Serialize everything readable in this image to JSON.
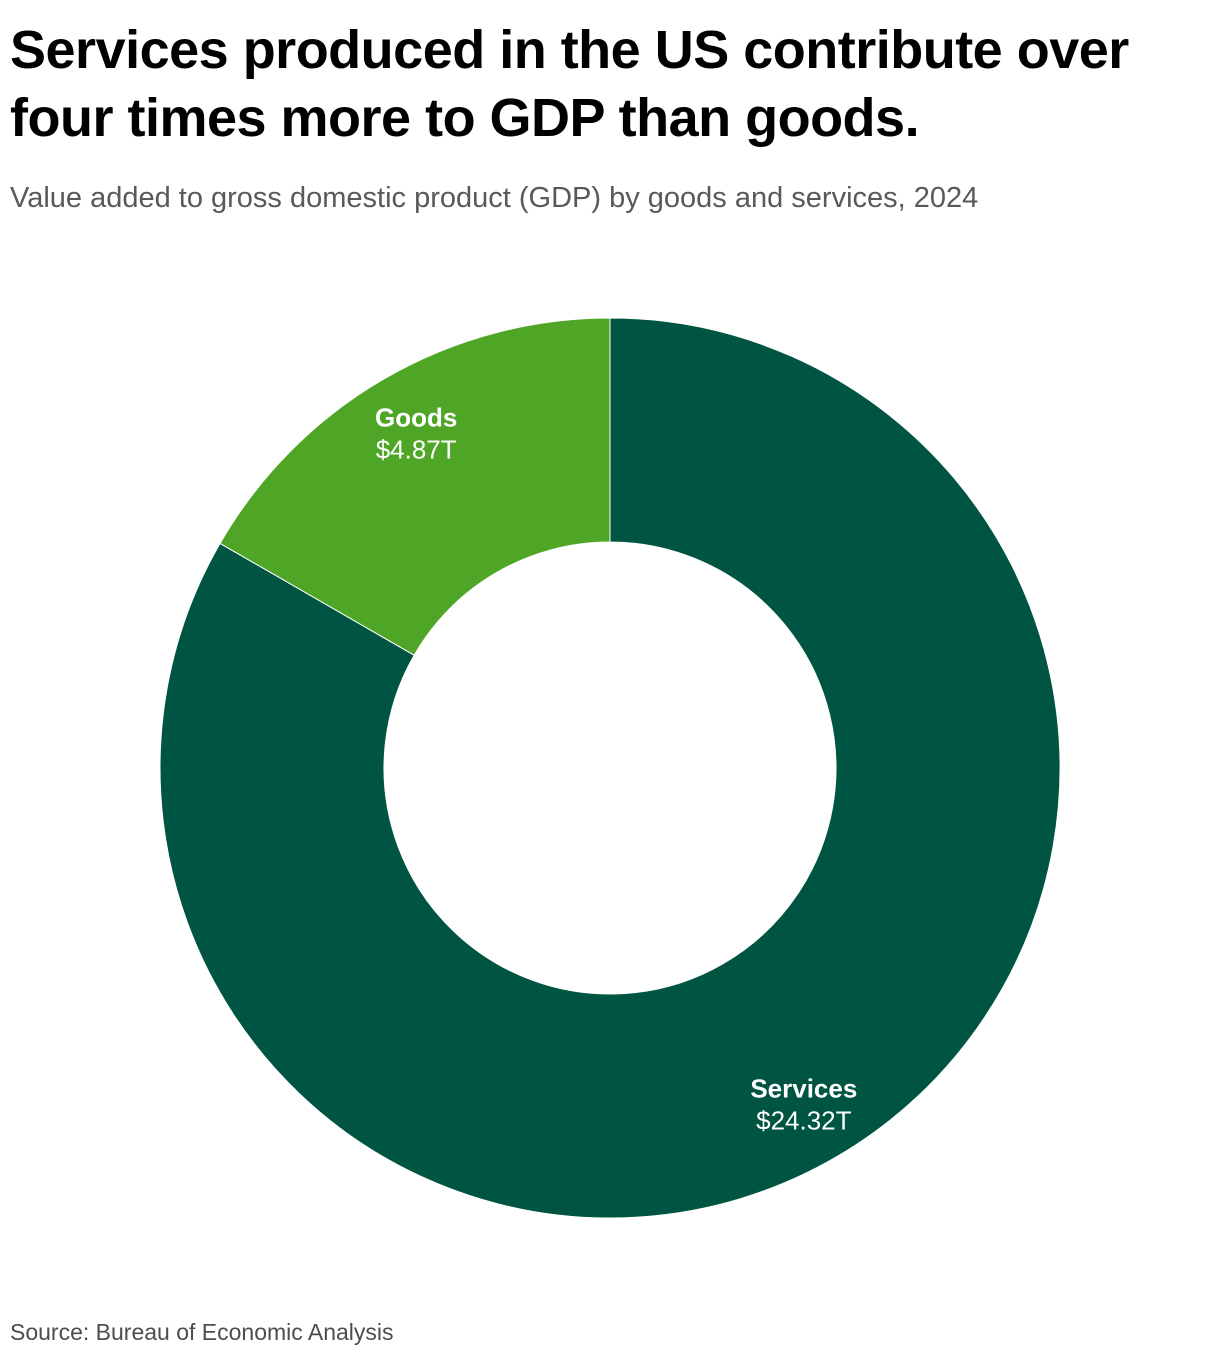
{
  "header": {
    "title": "Services produced in the US contribute over four times more to GDP than goods.",
    "subtitle": "Value added to gross domestic product (GDP) by goods and services, 2024"
  },
  "footer": {
    "source": "Source: Bureau of Economic Analysis"
  },
  "chart_data": {
    "type": "pie",
    "donut": true,
    "title": "Services produced in the US contribute over four times more to GDP than goods.",
    "subtitle": "Value added to gross domestic product (GDP) by goods and services, 2024",
    "unit": "trillion USD",
    "legend": "none",
    "slices": [
      {
        "label": "Services",
        "value": 24.32,
        "value_label": "$24.32T",
        "color": "#005442"
      },
      {
        "label": "Goods",
        "value": 4.87,
        "value_label": "$4.87T",
        "color": "#4fa626"
      }
    ]
  }
}
